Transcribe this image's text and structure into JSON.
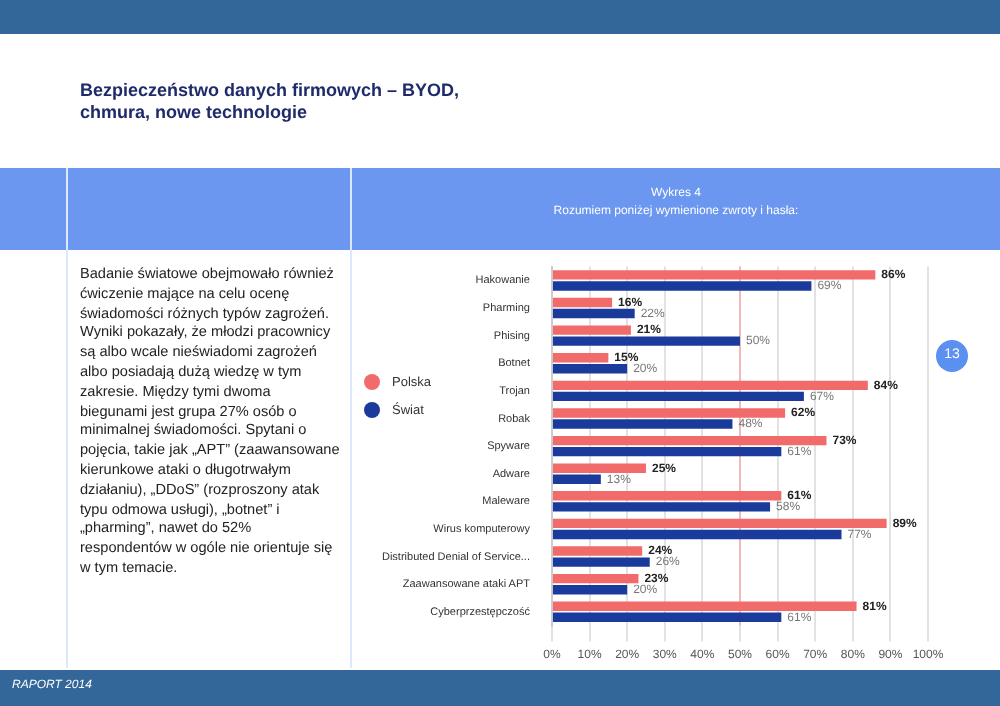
{
  "chart_data": {
    "type": "bar",
    "orientation": "horizontal",
    "title": "Wykres 4",
    "subtitle": "Rozumiem poniżej wymienione zwroty i hasła:",
    "categories": [
      "Hakowanie",
      "Pharming",
      "Phising",
      "Botnet",
      "Trojan",
      "Robak",
      "Spyware",
      "Adware",
      "Maleware",
      "Wirus komputerowy",
      "Distributed Denial of Service...",
      "Zaawansowane ataki APT",
      "Cyberprzestępczość"
    ],
    "series": [
      {
        "name": "Polska",
        "color": "#f26b6b",
        "values": [
          86,
          16,
          21,
          15,
          84,
          62,
          73,
          25,
          61,
          89,
          24,
          23,
          81
        ],
        "value_labels": [
          "86%",
          "16%",
          "21%",
          "15%",
          "84%",
          "62%",
          "73%",
          "25%",
          "61%",
          "89%",
          "24%",
          "23%",
          "81%"
        ]
      },
      {
        "name": "Świat",
        "color": "#1a3a9c",
        "values": [
          69,
          22,
          50,
          20,
          67,
          48,
          61,
          13,
          58,
          77,
          26,
          20,
          61
        ],
        "value_labels": [
          "69%",
          "22%",
          "50%",
          "20%",
          "67%",
          "48%",
          "61%",
          "13%",
          "58%",
          "77%",
          "26%",
          "20%",
          "61%"
        ]
      }
    ],
    "xlim": [
      0,
      100
    ],
    "xticks": [
      {
        "value": 0,
        "label": "0%"
      },
      {
        "value": 10,
        "label": "10%"
      },
      {
        "value": 20,
        "label": "20%"
      },
      {
        "value": 30,
        "label": "30%"
      },
      {
        "value": 40,
        "label": "40%"
      },
      {
        "value": 50,
        "label": "50%"
      },
      {
        "value": 60,
        "label": "60%"
      },
      {
        "value": 70,
        "label": "70%"
      },
      {
        "value": 80,
        "label": "80%"
      },
      {
        "value": 90,
        "label": "90%"
      },
      {
        "value": 100,
        "label": "100%"
      }
    ],
    "ref_lines": [
      {
        "axis": "x",
        "value": 50,
        "color": "#f2b8b8"
      }
    ],
    "grid": "x",
    "legend": "left",
    "annotations": [
      "Bezpieczeństwo danych firmowych – BYOD, chmura, nowe technologie",
      "Badanie światowe obejmowało również ćwiczenie mające na celu ocenę świadomości różnych typów zagrożeń. Wyniki pokazały, że młodzi pracownicy są albo wcale nieświadomi zagrożeń albo posiadają dużą wiedzę w tym zakresie. Między tymi dwoma biegunami jest grupa 27% osób o minimalnej świadomości. Spytani o pojęcia, takie jak „APT” (zaawansowane kierunkowe ataki o długotrwałym działaniu), „DDoS” (rozproszony atak typu odmowa usługi), „botnet” i „pharming”, nawet do 52% respondentów w ogóle nie orientuje się w tym temacie.",
      "13",
      "RAPORT 2014"
    ]
  }
}
